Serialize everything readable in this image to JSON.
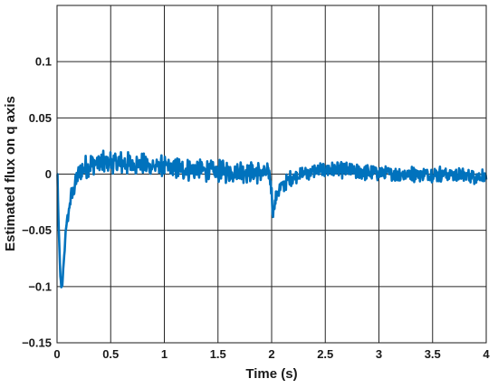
{
  "chart_data": {
    "type": "line",
    "title": "",
    "xlabel": "Time (s)",
    "ylabel": "Estimated flux on q axis",
    "xlim": [
      0,
      4
    ],
    "ylim": [
      -0.15,
      0.15
    ],
    "xticks": [
      0,
      0.5,
      1,
      1.5,
      2,
      2.5,
      3,
      3.5,
      4
    ],
    "xtick_labels": [
      "0",
      "0.5",
      "1",
      "1.5",
      "2",
      "2.5",
      "3",
      "3.5",
      "4"
    ],
    "yticks": [
      -0.15,
      -0.1,
      -0.05,
      0,
      0.05,
      0.1
    ],
    "ytick_labels": [
      "−0.15",
      "−0.1",
      "−0.05",
      "0",
      "0.05",
      "0.1"
    ],
    "grid": true,
    "legend": "none",
    "series": [
      {
        "color": "#0072bd",
        "x": [
          0,
          0.005,
          0.01,
          0.02,
          0.03,
          0.04,
          0.05,
          0.06,
          0.07,
          0.08,
          0.1,
          0.12,
          0.15,
          0.18,
          0.22,
          0.26,
          0.3,
          0.35,
          0.4,
          0.45,
          0.5,
          0.55,
          0.6,
          0.7,
          0.8,
          0.9,
          1.0,
          1.1,
          1.2,
          1.3,
          1.4,
          1.5,
          1.6,
          1.7,
          1.8,
          1.9,
          1.98,
          2.0,
          2.01,
          2.03,
          2.06,
          2.1,
          2.15,
          2.2,
          2.3,
          2.4,
          2.5,
          2.6,
          2.7,
          2.8,
          3.0,
          3.2,
          3.4,
          3.6,
          3.8,
          4.0
        ],
        "y": [
          0,
          0,
          -0.03,
          -0.06,
          -0.09,
          -0.1,
          -0.1,
          -0.08,
          -0.07,
          -0.05,
          -0.04,
          -0.025,
          -0.015,
          -0.005,
          0.002,
          0.006,
          0.008,
          0.01,
          0.01,
          0.01,
          0.011,
          0.01,
          0.01,
          0.009,
          0.008,
          0.007,
          0.006,
          0.005,
          0.004,
          0.004,
          0.003,
          0.002,
          0.002,
          0.003,
          0.002,
          0.001,
          0.0,
          -0.015,
          -0.035,
          -0.025,
          -0.015,
          -0.01,
          -0.006,
          -0.002,
          0.001,
          0.003,
          0.004,
          0.004,
          0.003,
          0.002,
          0.001,
          0.0,
          0.0,
          0.0,
          -0.001,
          -0.002
        ],
        "noise_amplitude": 0.008
      }
    ]
  }
}
